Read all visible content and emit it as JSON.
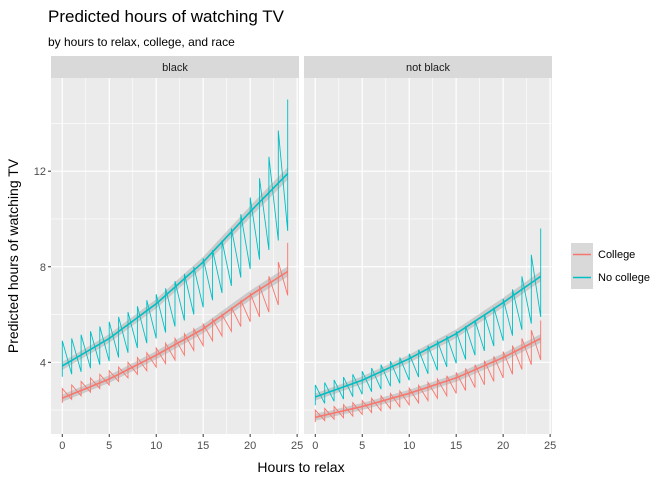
{
  "chart_data": {
    "type": "line",
    "title": "Predicted hours of watching TV",
    "subtitle": "by hours to relax, college, and race",
    "xlabel": "Hours to relax",
    "ylabel": "Predicted hours of watching TV",
    "xlim": [
      -1.2,
      25.2
    ],
    "ylim": [
      1.0,
      15.9
    ],
    "x_ticks": [
      0,
      5,
      10,
      15,
      20,
      25
    ],
    "y_ticks": [
      4,
      8,
      12
    ],
    "grid": true,
    "legend_position": "right",
    "legend": [
      {
        "label": "College",
        "color": "#F8766D"
      },
      {
        "label": "No college",
        "color": "#00BFC4"
      }
    ],
    "panels": [
      {
        "strip": "black",
        "series": [
          {
            "name": "College",
            "color": "#F8766D",
            "smooth": {
              "x": [
                0,
                5,
                10,
                15,
                20,
                24
              ],
              "y": [
                2.5,
                3.3,
                4.3,
                5.4,
                6.8,
                7.8
              ]
            },
            "jagged_low": [
              2.3,
              2.45,
              2.6,
              2.75,
              2.9,
              3.05,
              3.2,
              3.35,
              3.5,
              3.65,
              3.8,
              3.95,
              4.1,
              4.3,
              4.5,
              4.7,
              4.9,
              5.1,
              5.3,
              5.5,
              5.7,
              5.9,
              6.1,
              6.4,
              6.8
            ],
            "jagged_high": [
              2.9,
              3.05,
              3.2,
              3.35,
              3.5,
              3.65,
              3.8,
              4.0,
              4.2,
              4.4,
              4.6,
              4.8,
              5.0,
              5.2,
              5.4,
              5.6,
              5.8,
              6.0,
              6.3,
              6.6,
              6.9,
              7.2,
              7.6,
              8.2,
              9.0
            ]
          },
          {
            "name": "No college",
            "color": "#00BFC4",
            "smooth": {
              "x": [
                0,
                5,
                10,
                15,
                20,
                24
              ],
              "y": [
                3.85,
                5.0,
                6.45,
                8.2,
                10.3,
                11.9
              ]
            },
            "jagged_low": [
              3.4,
              3.5,
              3.6,
              3.75,
              3.9,
              4.05,
              4.2,
              4.4,
              4.6,
              4.8,
              5.0,
              5.25,
              5.5,
              5.75,
              6.0,
              6.3,
              6.6,
              6.9,
              7.2,
              7.55,
              7.9,
              8.3,
              8.7,
              9.1,
              9.5
            ],
            "jagged_high": [
              4.9,
              5.0,
              5.15,
              5.3,
              5.5,
              5.7,
              5.9,
              6.1,
              6.35,
              6.6,
              6.85,
              7.1,
              7.4,
              7.7,
              8.0,
              8.35,
              8.7,
              9.1,
              9.6,
              10.2,
              10.9,
              11.7,
              12.6,
              13.7,
              15.0
            ]
          }
        ]
      },
      {
        "strip": "not black",
        "series": [
          {
            "name": "College",
            "color": "#F8766D",
            "smooth": {
              "x": [
                0,
                5,
                10,
                15,
                20,
                24
              ],
              "y": [
                1.7,
                2.15,
                2.7,
                3.35,
                4.2,
                5.0
              ]
            },
            "jagged_low": [
              1.5,
              1.56,
              1.62,
              1.68,
              1.75,
              1.82,
              1.9,
              1.98,
              2.06,
              2.14,
              2.22,
              2.3,
              2.4,
              2.5,
              2.6,
              2.7,
              2.82,
              2.94,
              3.06,
              3.2,
              3.35,
              3.5,
              3.7,
              3.9,
              4.1
            ],
            "jagged_high": [
              2.0,
              2.07,
              2.15,
              2.23,
              2.31,
              2.4,
              2.5,
              2.6,
              2.7,
              2.8,
              2.92,
              3.04,
              3.16,
              3.3,
              3.44,
              3.58,
              3.74,
              3.9,
              4.07,
              4.25,
              4.45,
              4.7,
              5.0,
              5.35,
              5.75
            ]
          },
          {
            "name": "No college",
            "color": "#00BFC4",
            "smooth": {
              "x": [
                0,
                5,
                10,
                15,
                20,
                24
              ],
              "y": [
                2.55,
                3.25,
                4.15,
                5.2,
                6.5,
                7.6
              ]
            },
            "jagged_low": [
              2.2,
              2.28,
              2.37,
              2.46,
              2.56,
              2.66,
              2.77,
              2.88,
              3.0,
              3.12,
              3.25,
              3.38,
              3.52,
              3.66,
              3.81,
              3.96,
              4.12,
              4.3,
              4.48,
              4.68,
              4.9,
              5.12,
              5.36,
              5.62,
              5.9
            ],
            "jagged_high": [
              3.05,
              3.15,
              3.26,
              3.38,
              3.5,
              3.63,
              3.76,
              3.9,
              4.05,
              4.2,
              4.36,
              4.53,
              4.7,
              4.9,
              5.1,
              5.3,
              5.52,
              5.76,
              6.0,
              6.3,
              6.65,
              7.05,
              7.6,
              8.5,
              9.6
            ]
          }
        ]
      }
    ]
  }
}
